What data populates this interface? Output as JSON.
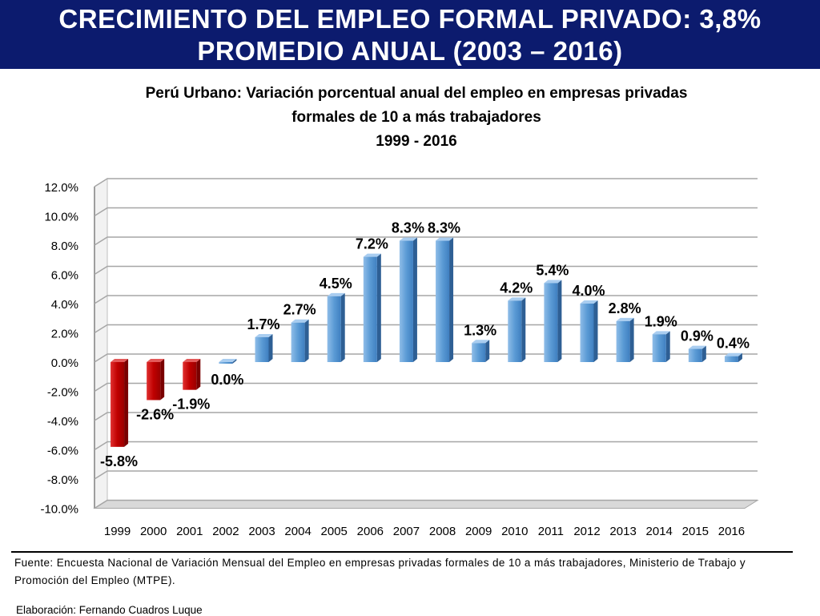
{
  "banner": {
    "line1": "CRECIMIENTO DEL EMPLEO FORMAL PRIVADO: 3,8%",
    "line2": "PROMEDIO ANUAL (2003 – 2016)"
  },
  "chart_data": {
    "type": "bar",
    "title_lines": [
      "Perú Urbano: Variación porcentual anual del empleo en empresas privadas",
      "formales de 10 a más trabajadores",
      "1999 - 2016"
    ],
    "categories": [
      "1999",
      "2000",
      "2001",
      "2002",
      "2003",
      "2004",
      "2005",
      "2006",
      "2007",
      "2008",
      "2009",
      "2010",
      "2011",
      "2012",
      "2013",
      "2014",
      "2015",
      "2016"
    ],
    "values": [
      -5.8,
      -2.6,
      -1.9,
      0.0,
      1.7,
      2.7,
      4.5,
      7.2,
      8.3,
      8.3,
      1.3,
      4.2,
      5.4,
      4.0,
      2.8,
      1.9,
      0.9,
      0.4
    ],
    "labels": [
      "-5.8%",
      "-2.6%",
      "-1.9%",
      "0.0%",
      "1.7%",
      "2.7%",
      "4.5%",
      "7.2%",
      "8.3%",
      "8.3%",
      "1.3%",
      "4.2%",
      "5.4%",
      "4.0%",
      "2.8%",
      "1.9%",
      "0.9%",
      "0.4%"
    ],
    "yticks": [
      "12.0%",
      "10.0%",
      "8.0%",
      "6.0%",
      "4.0%",
      "2.0%",
      "0.0%",
      "-2.0%",
      "-4.0%",
      "-6.0%",
      "-8.0%",
      "-10.0%"
    ],
    "ylim": [
      -10,
      12
    ],
    "xlabel": "",
    "ylabel": "",
    "grid": true,
    "colors": {
      "positive": "#5b9bd5",
      "negative": "#c00000"
    }
  },
  "footer": {
    "source": "Fuente: Encuesta Nacional de Variación Mensual del Empleo en empresas privadas formales de 10 a más trabajadores, Ministerio de Trabajo y Promoción del Empleo (MTPE).",
    "credit": "Elaboración: Fernando Cuadros Luque"
  }
}
